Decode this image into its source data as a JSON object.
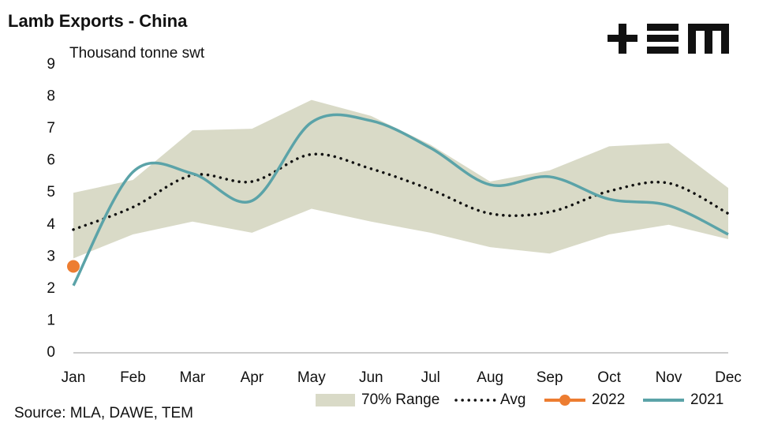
{
  "chart_data": {
    "type": "line",
    "title": "Lamb Exports - China",
    "subtitle": "Thousand tonne swt",
    "source": "Source: MLA, DAWE, TEM",
    "categories": [
      "Jan",
      "Feb",
      "Mar",
      "Apr",
      "May",
      "Jun",
      "Jul",
      "Aug",
      "Sep",
      "Oct",
      "Nov",
      "Dec"
    ],
    "ylim": [
      0,
      9
    ],
    "yticks": [
      0,
      1,
      2,
      3,
      4,
      5,
      6,
      7,
      8,
      9
    ],
    "range": {
      "name": "70% Range",
      "color": "#d9dac7",
      "low": [
        2.95,
        3.7,
        4.1,
        3.75,
        4.5,
        4.1,
        3.75,
        3.3,
        3.1,
        3.7,
        4.0,
        3.55
      ],
      "high": [
        5.0,
        5.4,
        6.95,
        7.0,
        7.9,
        7.4,
        6.5,
        5.35,
        5.7,
        6.45,
        6.55,
        5.15
      ]
    },
    "series": [
      {
        "name": "Avg",
        "color": "#111111",
        "style": "dotted",
        "values": [
          3.85,
          4.55,
          5.55,
          5.35,
          6.2,
          5.75,
          5.1,
          4.35,
          4.4,
          5.05,
          5.3,
          4.35
        ]
      },
      {
        "name": "2022",
        "color": "#ed7d31",
        "style": "marker",
        "values": [
          2.7,
          null,
          null,
          null,
          null,
          null,
          null,
          null,
          null,
          null,
          null,
          null
        ]
      },
      {
        "name": "2021",
        "color": "#5ba3a8",
        "style": "solid",
        "values": [
          2.1,
          5.65,
          5.6,
          4.75,
          7.2,
          7.25,
          6.4,
          5.25,
          5.5,
          4.8,
          4.6,
          3.7
        ]
      }
    ]
  }
}
